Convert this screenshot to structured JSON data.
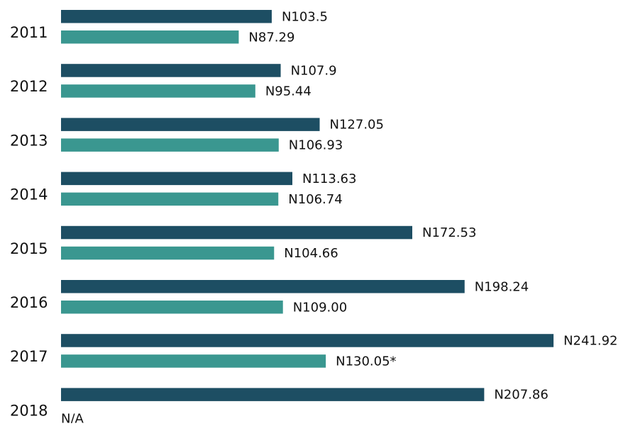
{
  "chart_data": {
    "type": "bar",
    "orientation": "horizontal",
    "categories": [
      "2011",
      "2012",
      "2013",
      "2014",
      "2015",
      "2016",
      "2017",
      "2018"
    ],
    "series": [
      {
        "color": "#1d4e63",
        "values": [
          103.5,
          107.9,
          127.05,
          113.63,
          172.53,
          198.24,
          241.92,
          207.86
        ],
        "value_labels": [
          "N103.5",
          "N107.9",
          "N127.05",
          "N113.63",
          "N172.53",
          "N198.24",
          "N241.92",
          "N207.86"
        ]
      },
      {
        "color": "#3a9790",
        "values": [
          87.29,
          95.44,
          106.93,
          106.74,
          104.66,
          109.0,
          130.05,
          null
        ],
        "value_labels": [
          "N87.29",
          "N95.44",
          "N106.93",
          "N106.74",
          "N104.66",
          "N109.00",
          "N130.05*",
          "N/A"
        ]
      }
    ]
  }
}
